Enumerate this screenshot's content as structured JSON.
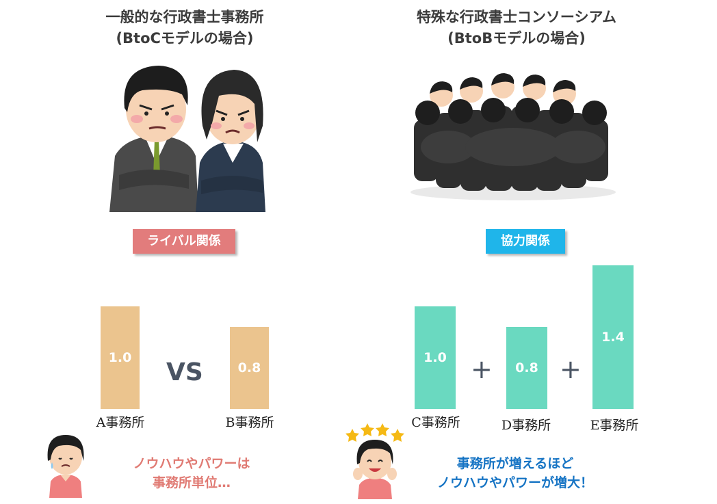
{
  "left": {
    "title_line1": "一般的な行政書士事務所",
    "title_line2": "(BtoCモデルの場合)",
    "tag_label": "ライバル関係",
    "tag_color": "#e27c7c",
    "operator": "VS",
    "note_line1": "ノウハウやパワーは",
    "note_line2": "事務所単位…",
    "note_color": "#e07a73"
  },
  "right": {
    "title_line1": "特殊な行政書士コンソーシアム",
    "title_line2": "(BtoBモデルの場合)",
    "tag_label": "協力関係",
    "tag_color": "#1fb5ea",
    "operator1": "+",
    "operator2": "+",
    "note_line1": "事務所が増えるほど",
    "note_line2": "ノウハウやパワーが増大！",
    "note_color": "#1674c4"
  },
  "icons": {
    "rival_pair": "angry-businessman-and-businesswoman-illustration",
    "group_huddle": "business-team-huddle-illustration",
    "worried_woman": "worried-woman-icon",
    "happy_woman": "happy-woman-with-stars-icon"
  },
  "chart_data": [
    {
      "type": "bar",
      "categories": [
        "A事務所",
        "B事務所"
      ],
      "values": [
        1.0,
        0.8
      ],
      "colors": [
        "#ebc48e",
        "#ebc48e"
      ]
    },
    {
      "type": "bar",
      "categories": [
        "C事務所",
        "D事務所",
        "E事務所"
      ],
      "values": [
        1.0,
        0.8,
        1.4
      ],
      "colors": [
        "#6ad9c0",
        "#6ad9c0",
        "#6ad9c0"
      ]
    }
  ]
}
